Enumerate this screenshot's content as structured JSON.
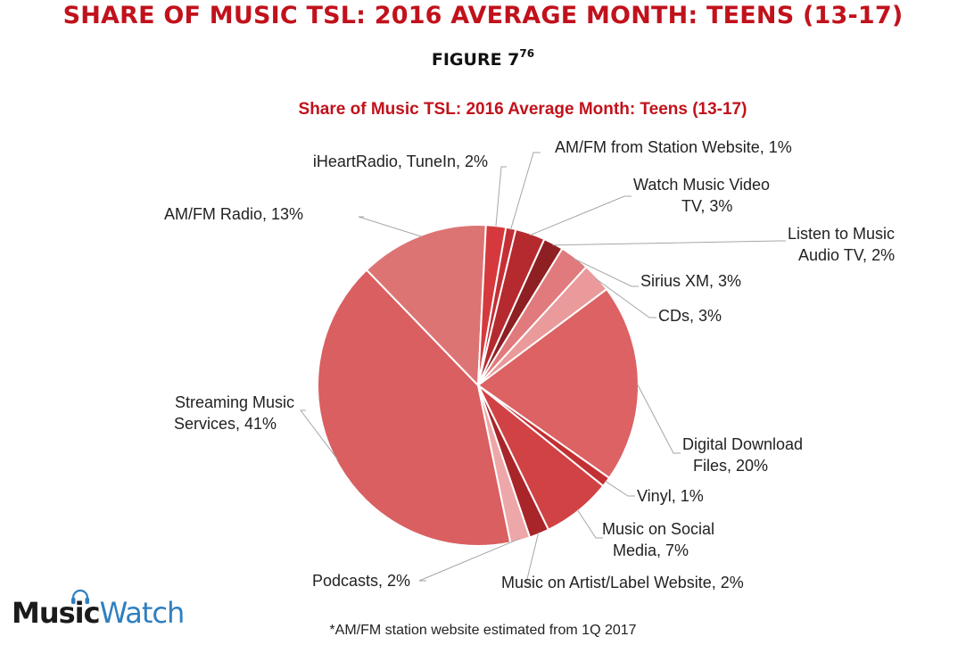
{
  "header": {
    "title": "SHARE OF MUSIC TSL: 2016 AVERAGE MONTH: TEENS (13-17)",
    "figure": "FIGURE 7",
    "figure_sup": "76"
  },
  "footnote": "*AM/FM station website estimated from 1Q 2017",
  "logo": {
    "part1": "Music",
    "part2": "Watch",
    "icon": "headphones-icon",
    "colors": [
      "#1b1b1b",
      "#2f7fbf"
    ]
  },
  "chart_data": {
    "type": "pie",
    "title": "Share of Music TSL: 2016 Average Month: Teens (13-17)",
    "unit": "%",
    "slices": [
      {
        "label": "AM/FM from Station Website, 1%",
        "value": 1,
        "color": "#c42f35"
      },
      {
        "label": "Watch Music Video TV, 3%",
        "value": 3,
        "color": "#b52a2f"
      },
      {
        "label": "Listen to Music Audio TV, 2%",
        "value": 2,
        "color": "#8e1f22"
      },
      {
        "label": "Sirius XM, 3%",
        "value": 3,
        "color": "#e07a7c"
      },
      {
        "label": "CDs, 3%",
        "value": 3,
        "color": "#ea9a9b"
      },
      {
        "label": "Digital Download Files, 20%",
        "value": 20,
        "color": "#dc6264"
      },
      {
        "label": "Vinyl, 1%",
        "value": 1,
        "color": "#c23033"
      },
      {
        "label": "Music on Social Media, 7%",
        "value": 7,
        "color": "#d14245"
      },
      {
        "label": "Music on Artist/Label Website, 2%",
        "value": 2,
        "color": "#a8252a"
      },
      {
        "label": "Podcasts, 2%",
        "value": 2,
        "color": "#eea7a8"
      },
      {
        "label": "Streaming Music Services, 41%",
        "value": 41,
        "color": "#d95f61"
      },
      {
        "label": "AM/FM Radio, 13%",
        "value": 13,
        "color": "#dd7474"
      },
      {
        "label": "iHeartRadio, TuneIn, 2%",
        "value": 2,
        "color": "#d5393d"
      }
    ]
  }
}
